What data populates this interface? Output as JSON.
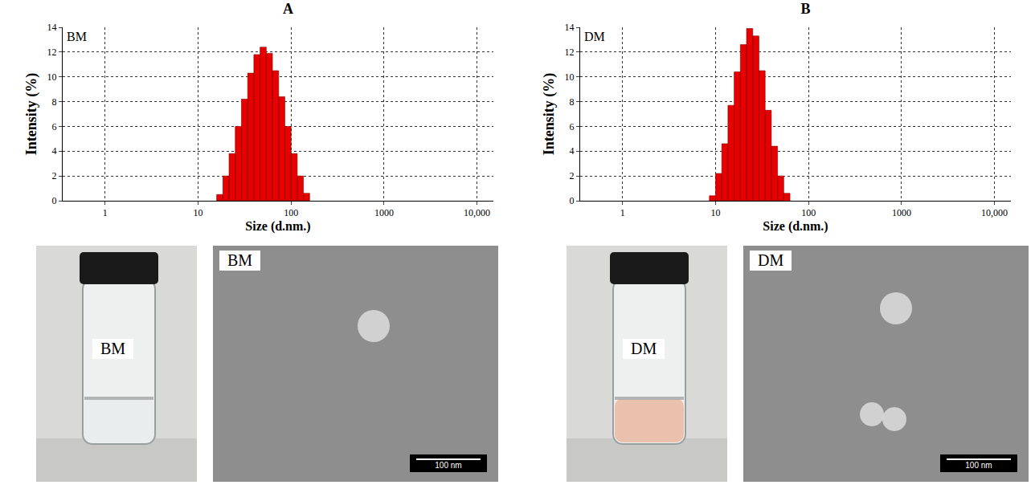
{
  "chart_data": [
    {
      "type": "histogram",
      "title": "A",
      "annotations": [
        "BM"
      ],
      "x_label": "Size (d.nm.)",
      "y_label": "Intensity (%)",
      "bins": [
        15.85,
        18.48,
        21.54,
        25.12,
        29.29,
        34.15,
        39.81,
        46.42,
        54.12,
        63.1,
        73.56,
        85.77,
        100,
        116.6,
        135.9,
        158.5
      ],
      "values": [
        0.5,
        2.0,
        3.8,
        6.0,
        8.2,
        10.3,
        11.8,
        12.4,
        11.9,
        10.5,
        8.4,
        6.0,
        3.8,
        2.0,
        0.6
      ],
      "color": "#e60000",
      "log": "x",
      "grid": true,
      "xlim": [
        0.35,
        15000
      ],
      "xticks": [
        1,
        10,
        100,
        1000,
        {
          "value": 10000,
          "label": "10,000"
        }
      ],
      "ylim": [
        0,
        14
      ],
      "yticks": [
        0,
        2,
        4,
        6,
        8,
        10,
        12,
        14
      ]
    },
    {
      "type": "histogram",
      "title": "B",
      "annotations": [
        "DM"
      ],
      "x_label": "Size (d.nm.)",
      "y_label": "Intensity (%)",
      "bins": [
        8.58,
        10,
        11.66,
        13.59,
        15.85,
        18.48,
        21.54,
        25.12,
        29.29,
        34.15,
        39.81,
        46.42,
        54.12,
        63.1
      ],
      "values": [
        0.4,
        2.2,
        4.6,
        7.7,
        10.4,
        12.6,
        13.9,
        13.3,
        10.5,
        7.3,
        4.4,
        2.0,
        0.6
      ],
      "color": "#e60000",
      "log": "x",
      "grid": true,
      "xlim": [
        0.35,
        15000
      ],
      "xticks": [
        1,
        10,
        100,
        1000,
        {
          "value": 10000,
          "label": "10,000"
        }
      ],
      "ylim": [
        0,
        14
      ],
      "yticks": [
        0,
        2,
        4,
        6,
        8,
        10,
        12,
        14
      ]
    }
  ],
  "images": [
    {
      "vial_label": "BM",
      "tem_label": "BM",
      "scale_bar": "100 nm"
    },
    {
      "vial_label": "DM",
      "tem_label": "DM",
      "scale_bar": "100 nm"
    }
  ]
}
